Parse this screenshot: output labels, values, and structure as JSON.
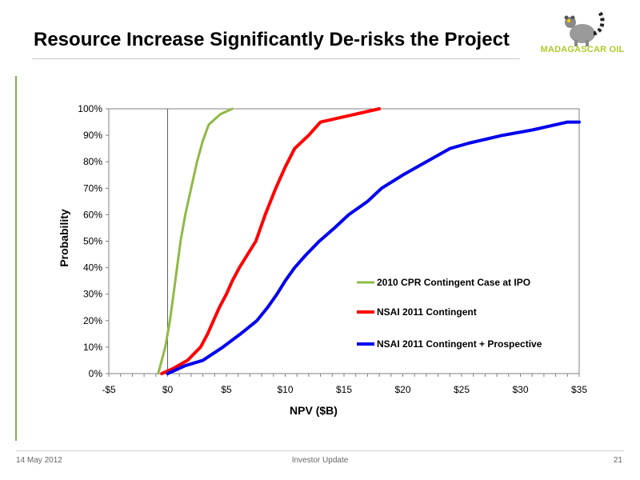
{
  "slide": {
    "title": "Resource Increase Significantly De-risks the Project",
    "logo_text": "MADAGASCAR OIL",
    "footer_left": "14 May 2012",
    "footer_center": "Investor Update",
    "footer_right": "21"
  },
  "colors": {
    "green": "#8fb945",
    "red": "#ff0000",
    "blue": "#0000ee",
    "accent_rule": "#7fb34a"
  },
  "chart_data": {
    "type": "line",
    "xlabel": "NPV ($B)",
    "ylabel": "Probability",
    "xlim": [
      -5,
      35
    ],
    "ylim": [
      0,
      100
    ],
    "x_ticks": [
      -5,
      0,
      5,
      10,
      15,
      20,
      25,
      30,
      35
    ],
    "x_tick_labels": [
      "-$5",
      "$0",
      "$5",
      "$10",
      "$15",
      "$20",
      "$25",
      "$30",
      "$35"
    ],
    "y_ticks": [
      0,
      10,
      20,
      30,
      40,
      50,
      60,
      70,
      80,
      90,
      100
    ],
    "y_tick_labels": [
      "0%",
      "10%",
      "20%",
      "30%",
      "40%",
      "50%",
      "60%",
      "70%",
      "80%",
      "90%",
      "100%"
    ],
    "legend_position": "right",
    "series": [
      {
        "name": "2010 CPR Contingent Case at IPO",
        "color": "#8fb945",
        "x": [
          -0.8,
          -0.5,
          -0.2,
          0.2,
          0.5,
          0.8,
          1.1,
          1.5,
          2.0,
          2.5,
          3.0,
          3.5,
          4.5,
          5.5
        ],
        "y": [
          0,
          5,
          10,
          20,
          30,
          40,
          50,
          60,
          70,
          80,
          88,
          94,
          98,
          100
        ]
      },
      {
        "name": "NSAI 2011 Contingent",
        "color": "#ff0000",
        "x": [
          -0.5,
          0.5,
          1.7,
          2.8,
          3.4,
          3.9,
          4.4,
          5.0,
          5.5,
          6.1,
          6.8,
          7.5,
          8.3,
          9.2,
          10.0,
          10.8,
          12.0,
          13.0,
          15.0,
          18.0
        ],
        "y": [
          0,
          2,
          5,
          10,
          15,
          20,
          25,
          30,
          35,
          40,
          45,
          50,
          60,
          70,
          78,
          85,
          90,
          95,
          97,
          100
        ]
      },
      {
        "name": "NSAI 2011 Contingent + Prospective",
        "color": "#0000ee",
        "x": [
          0,
          1.5,
          3.0,
          4.7,
          6.2,
          7.6,
          8.5,
          9.3,
          10.0,
          10.8,
          11.8,
          12.9,
          14.2,
          15.4,
          17.0,
          18.2,
          20.0,
          22.0,
          24.0,
          25.6,
          28.5,
          31.0,
          34.0,
          35.0
        ],
        "y": [
          0,
          3,
          5,
          10,
          15,
          20,
          25,
          30,
          35,
          40,
          45,
          50,
          55,
          60,
          65,
          70,
          75,
          80,
          85,
          87,
          90,
          92,
          95,
          95
        ]
      }
    ]
  }
}
